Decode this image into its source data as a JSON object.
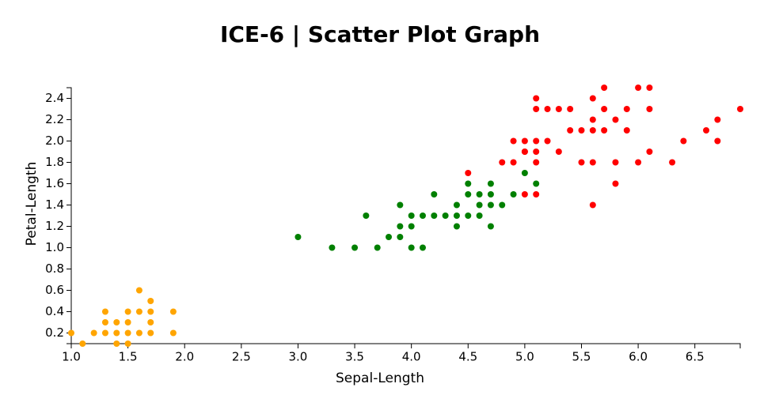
{
  "chart_data": {
    "type": "scatter",
    "title": "ICE-6 | Scatter Plot Graph",
    "x_label": "Sepal-Length",
    "y_label": "Petal-Length",
    "xlim": [
      1.0,
      6.9
    ],
    "ylim": [
      0.1,
      2.5
    ],
    "xticks": [
      {
        "value": 1,
        "label": "1.0"
      },
      1.5,
      {
        "value": 2,
        "label": "2.0"
      },
      2.5,
      {
        "value": 3,
        "label": "3.0"
      },
      3.5,
      {
        "value": 4,
        "label": "4.0"
      },
      4.5,
      {
        "value": 5,
        "label": "5.0"
      },
      5.5,
      {
        "value": 6,
        "label": "6.0"
      },
      6.5
    ],
    "yticks": [
      0.2,
      0.4,
      0.6,
      0.8,
      {
        "value": 1,
        "label": "1.0"
      },
      1.2,
      1.4,
      1.6,
      1.8,
      {
        "value": 2,
        "label": "2.0"
      },
      2.2,
      2.4
    ],
    "series": [
      {
        "color": "#ffa500",
        "x": [
          1.0,
          1.1,
          1.2,
          1.3,
          1.3,
          1.3,
          1.4,
          1.4,
          1.4,
          1.5,
          1.5,
          1.5,
          1.5,
          1.6,
          1.6,
          1.6,
          1.7,
          1.7,
          1.7,
          1.7,
          1.9,
          1.9
        ],
        "y": [
          0.2,
          0.1,
          0.2,
          0.2,
          0.3,
          0.4,
          0.1,
          0.2,
          0.3,
          0.1,
          0.2,
          0.3,
          0.4,
          0.2,
          0.4,
          0.6,
          0.2,
          0.3,
          0.4,
          0.5,
          0.2,
          0.4
        ]
      },
      {
        "color": "#008000",
        "x": [
          4.7,
          4.5,
          4.9,
          4.0,
          4.6,
          4.5,
          4.7,
          3.3,
          4.6,
          3.9,
          3.5,
          4.2,
          4.0,
          3.6,
          4.4,
          4.1,
          3.9,
          4.7,
          4.3,
          4.8,
          5.0,
          3.8,
          3.7,
          3.9,
          5.1,
          4.5,
          4.7,
          4.4,
          4.1,
          4.4,
          4.6,
          4.0,
          4.2,
          3.0
        ],
        "y": [
          1.4,
          1.5,
          1.5,
          1.3,
          1.5,
          1.3,
          1.6,
          1.0,
          1.3,
          1.4,
          1.0,
          1.5,
          1.0,
          1.3,
          1.4,
          1.0,
          1.1,
          1.2,
          1.3,
          1.4,
          1.7,
          1.1,
          1.0,
          1.2,
          1.6,
          1.6,
          1.5,
          1.3,
          1.3,
          1.2,
          1.4,
          1.2,
          1.3,
          1.1
        ]
      },
      {
        "color": "#ff0000",
        "x": [
          6.0,
          5.1,
          5.9,
          5.6,
          5.8,
          6.6,
          4.5,
          6.3,
          5.8,
          6.1,
          5.1,
          5.3,
          5.5,
          5.0,
          5.1,
          5.3,
          5.5,
          6.7,
          6.9,
          5.0,
          5.7,
          4.9,
          6.7,
          4.9,
          5.7,
          6.0,
          4.8,
          5.6,
          5.8,
          6.1,
          6.4,
          5.6,
          5.1,
          5.6,
          6.1,
          5.6,
          5.4,
          5.1,
          5.9,
          5.7,
          5.2,
          5.0,
          5.2,
          5.4,
          5.1,
          5.0
        ],
        "y": [
          2.5,
          1.9,
          2.1,
          1.8,
          2.2,
          2.1,
          1.7,
          1.8,
          1.8,
          2.5,
          2.0,
          1.9,
          2.1,
          2.0,
          2.4,
          2.3,
          1.8,
          2.2,
          2.3,
          1.5,
          2.3,
          2.0,
          2.0,
          1.8,
          2.1,
          1.8,
          1.8,
          2.1,
          1.6,
          1.9,
          2.0,
          2.2,
          1.5,
          1.4,
          2.3,
          2.4,
          2.1,
          2.3,
          2.3,
          2.5,
          2.3,
          1.9,
          2.0,
          2.3,
          1.8,
          1.9
        ]
      }
    ]
  }
}
